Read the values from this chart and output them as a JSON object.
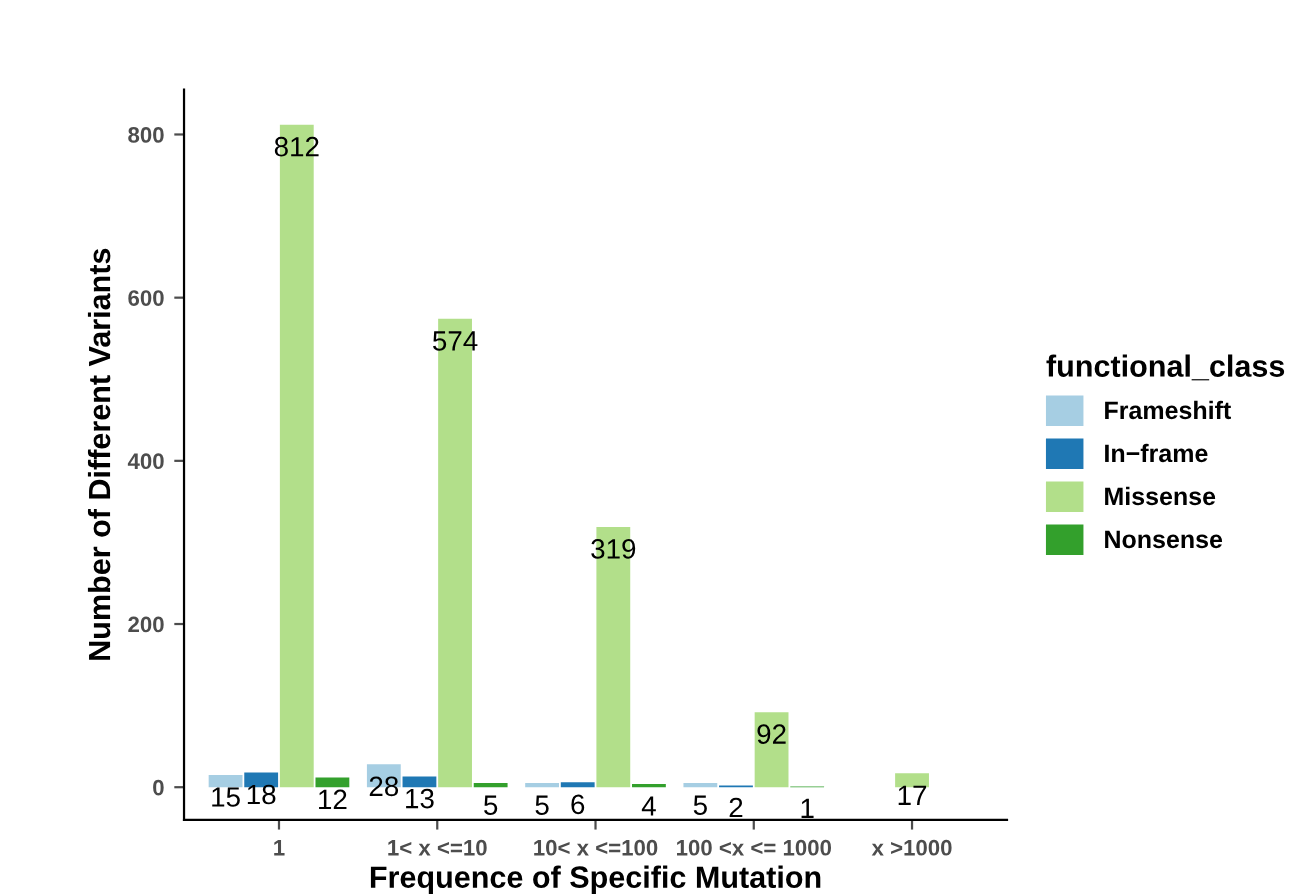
{
  "chart_data": {
    "type": "bar",
    "xlabel": "Frequence of Specific Mutation",
    "ylabel": "Number of Different Variants",
    "legend_title": "functional_class",
    "categories": [
      "1",
      "1< x <=10",
      "10< x <=100",
      "100 <x <= 1000",
      "x >1000"
    ],
    "series": [
      {
        "name": "Frameshift",
        "color": "#a6cee3",
        "values": [
          15,
          28,
          5,
          5,
          null
        ]
      },
      {
        "name": "In−frame",
        "color": "#1f78b4",
        "values": [
          18,
          13,
          6,
          2,
          null
        ]
      },
      {
        "name": "Missense",
        "color": "#b2df8a",
        "values": [
          812,
          574,
          319,
          92,
          17
        ]
      },
      {
        "name": "Nonsense",
        "color": "#33a02c",
        "values": [
          12,
          5,
          4,
          1,
          null
        ]
      }
    ],
    "ylim": [
      -40,
      855
    ],
    "yticks": [
      0,
      200,
      400,
      600,
      800
    ],
    "grid": false,
    "legend": "right",
    "data_labels": true
  }
}
